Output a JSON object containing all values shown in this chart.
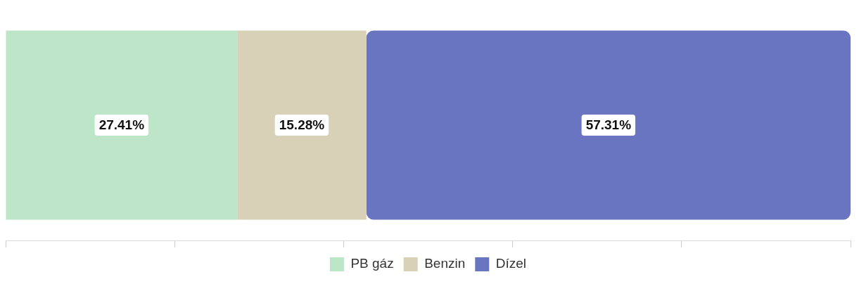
{
  "chart_data": {
    "type": "bar",
    "orientation": "horizontal",
    "stacked": true,
    "categories": [
      null
    ],
    "series": [
      {
        "name": "PB gáz",
        "color": "#bde5c8",
        "values": [
          27.41
        ],
        "value_labels": [
          "27.41%"
        ]
      },
      {
        "name": "Benzin",
        "color": "#d8d1b8",
        "values": [
          15.28
        ],
        "value_labels": [
          "15.28%"
        ]
      },
      {
        "name": "Dízel",
        "color": "#6a75c2",
        "values": [
          57.31
        ],
        "value_labels": [
          "57.31%"
        ]
      }
    ],
    "xlim": [
      0,
      100
    ],
    "tick_labels": false,
    "grid": false,
    "legend": "bottom"
  }
}
